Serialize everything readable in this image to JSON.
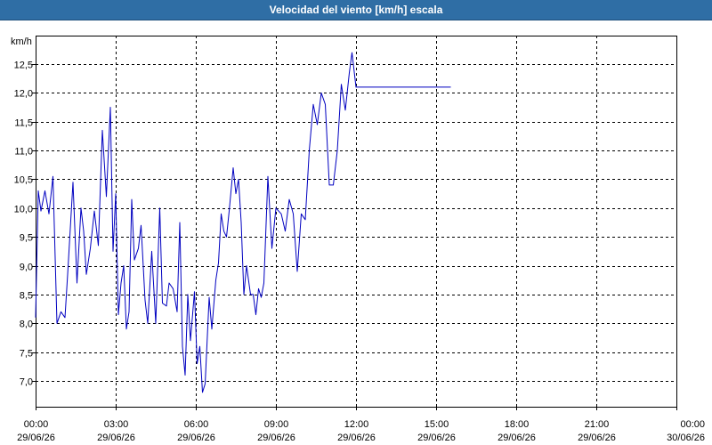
{
  "window": {
    "title": "Velocidad del viento [km/h] escala"
  },
  "colors": {
    "title_bar": "#2f6ea5",
    "series_line": "#0000c0",
    "grid": "#000000"
  },
  "chart_data": {
    "type": "line",
    "title": "Velocidad del viento [km/h] escala",
    "ylabel": "km/h",
    "xlabel": "",
    "ylim": [
      6.8,
      13.0
    ],
    "y_ticks": [
      "7,0",
      "7,5",
      "8,0",
      "8,5",
      "9,0",
      "9,5",
      "10,0",
      "10,5",
      "11,0",
      "11,5",
      "12,0",
      "12,5"
    ],
    "y_tick_values": [
      7.0,
      7.5,
      8.0,
      8.5,
      9.0,
      9.5,
      10.0,
      10.5,
      11.0,
      11.5,
      12.0,
      12.5
    ],
    "x_range_hours": [
      0,
      24
    ],
    "x_ticks": [
      {
        "hour": 0,
        "time": "00:00",
        "date": "29/06/26"
      },
      {
        "hour": 3,
        "time": "03:00",
        "date": "29/06/26"
      },
      {
        "hour": 6,
        "time": "06:00",
        "date": "29/06/26"
      },
      {
        "hour": 9,
        "time": "09:00",
        "date": "29/06/26"
      },
      {
        "hour": 12,
        "time": "12:00",
        "date": "29/06/26"
      },
      {
        "hour": 15,
        "time": "15:00",
        "date": "29/06/26"
      },
      {
        "hour": 18,
        "time": "18:00",
        "date": "29/06/26"
      },
      {
        "hour": 21,
        "time": "21:00",
        "date": "29/06/26"
      },
      {
        "hour": 24,
        "time": "00:00",
        "date": "30/06/26"
      }
    ],
    "grid": true,
    "legend": "none",
    "series": [
      {
        "x": [
          0.0,
          0.1,
          0.2,
          0.35,
          0.5,
          0.65,
          0.8,
          0.95,
          1.1,
          1.2,
          1.4,
          1.55,
          1.7,
          1.8,
          1.9,
          2.05,
          2.2,
          2.35,
          2.5,
          2.65,
          2.8,
          2.9,
          3.0,
          3.1,
          3.2,
          3.3,
          3.4,
          3.5,
          3.6,
          3.7,
          3.85,
          3.95,
          4.1,
          4.2,
          4.35,
          4.5,
          4.65,
          4.75,
          4.9,
          5.0,
          5.15,
          5.3,
          5.4,
          5.5,
          5.6,
          5.7,
          5.8,
          5.95,
          6.05,
          6.15,
          6.25,
          6.35,
          6.5,
          6.6,
          6.75,
          6.85,
          6.95,
          7.05,
          7.15,
          7.25,
          7.4,
          7.5,
          7.6,
          7.7,
          7.8,
          7.9,
          8.05,
          8.15,
          8.25,
          8.35,
          8.45,
          8.55,
          8.7,
          8.85,
          9.0,
          9.2,
          9.35,
          9.5,
          9.65,
          9.8,
          9.95,
          10.1,
          10.25,
          10.4,
          10.55,
          10.7,
          10.85,
          11.0,
          11.15,
          11.3,
          11.45,
          11.6,
          11.75,
          11.85,
          12.0,
          12.1,
          12.2,
          12.35,
          12.5,
          12.65,
          12.8,
          12.95,
          13.1,
          13.25,
          13.35,
          13.5,
          13.6,
          13.7,
          13.8,
          13.95,
          14.05,
          14.2,
          14.35,
          14.5,
          14.65,
          14.8,
          14.95,
          15.05,
          15.2,
          15.3,
          15.45,
          15.55
        ],
        "y": [
          8.1,
          10.3,
          9.95,
          10.3,
          9.9,
          10.55,
          8.0,
          8.2,
          8.1,
          8.85,
          10.45,
          8.7,
          10.0,
          9.6,
          8.85,
          9.3,
          9.95,
          9.35,
          11.35,
          10.2,
          11.75,
          9.25,
          10.25,
          8.15,
          8.7,
          9.0,
          7.9,
          8.2,
          10.15,
          9.1,
          9.3,
          9.7,
          8.4,
          8.0,
          9.25,
          8.0,
          10.0,
          8.35,
          8.3,
          8.7,
          8.6,
          8.2,
          9.75,
          7.6,
          7.1,
          8.5,
          7.7,
          8.55,
          7.3,
          7.6,
          6.8,
          6.95,
          8.45,
          7.9,
          8.75,
          9.05,
          9.9,
          9.6,
          9.5,
          9.95,
          10.7,
          10.25,
          10.5,
          9.75,
          8.5,
          9.0,
          8.5,
          8.5,
          8.15,
          8.6,
          8.45,
          8.7,
          10.55,
          9.3,
          10.0,
          9.9,
          9.6,
          10.15,
          9.9,
          8.9,
          9.9,
          9.8,
          11.0,
          11.8,
          11.45,
          12.0,
          11.8,
          10.4,
          10.4,
          11.0,
          12.15,
          11.7,
          12.35,
          12.7,
          12.1,
          12.1,
          12.1,
          12.1,
          12.1,
          12.1,
          12.1,
          12.1,
          12.1,
          12.1,
          12.1,
          12.1,
          12.1,
          12.1,
          12.1,
          12.1,
          12.1,
          12.1,
          12.1,
          12.1,
          12.1,
          12.1,
          12.1,
          12.1,
          12.1,
          12.1,
          12.1,
          12.1
        ]
      }
    ]
  }
}
